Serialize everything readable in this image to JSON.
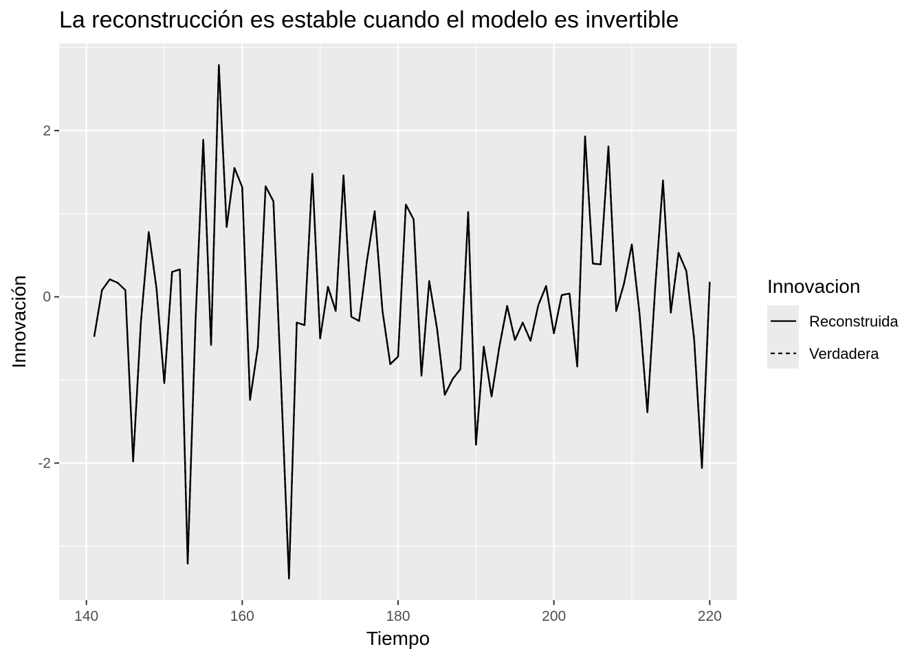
{
  "chart_data": {
    "type": "line",
    "title": "La reconstrucción es estable cuando el modelo es invertible",
    "xlabel": "Tiempo",
    "ylabel": "Innovación",
    "xlim": [
      136.5,
      223.5
    ],
    "ylim": [
      -3.65,
      3.05
    ],
    "xticks": [
      140,
      160,
      180,
      200,
      220
    ],
    "yticks": [
      -2,
      0,
      2
    ],
    "xtick_labels": [
      "140",
      "160",
      "180",
      "200",
      "220"
    ],
    "ytick_labels": [
      "-2",
      "0",
      "2"
    ],
    "grid": true,
    "legend": {
      "title": "Innovacion",
      "position": "right",
      "entries": [
        {
          "label": "Reconstruida",
          "linetype": "solid"
        },
        {
          "label": "Verdadera",
          "linetype": "dashed"
        }
      ]
    },
    "x": [
      141,
      142,
      143,
      144,
      145,
      146,
      147,
      148,
      149,
      150,
      151,
      152,
      153,
      154,
      155,
      156,
      157,
      158,
      159,
      160,
      161,
      162,
      163,
      164,
      165,
      166,
      167,
      168,
      169,
      170,
      171,
      172,
      173,
      174,
      175,
      176,
      177,
      178,
      179,
      180,
      181,
      182,
      183,
      184,
      185,
      186,
      187,
      188,
      189,
      190,
      191,
      192,
      193,
      194,
      195,
      196,
      197,
      198,
      199,
      200,
      201,
      202,
      203,
      204,
      205,
      206,
      207,
      208,
      209,
      210,
      211,
      212,
      213,
      214,
      215,
      216,
      217,
      218,
      219,
      220
    ],
    "series": [
      {
        "name": "Reconstruida",
        "color": "#000000",
        "linetype": "solid",
        "values": [
          -0.48,
          0.08,
          0.21,
          0.17,
          0.08,
          -1.98,
          -0.3,
          0.78,
          0.1,
          -1.04,
          0.3,
          0.33,
          -3.21,
          -0.31,
          1.89,
          -0.58,
          2.79,
          0.84,
          1.55,
          1.32,
          -1.24,
          -0.61,
          1.33,
          1.15,
          -1.07,
          -3.39,
          -0.31,
          -0.34,
          1.48,
          -0.5,
          0.12,
          -0.17,
          1.46,
          -0.24,
          -0.29,
          0.43,
          1.03,
          -0.17,
          -0.81,
          -0.72,
          1.11,
          0.93,
          -0.95,
          0.19,
          -0.38,
          -1.18,
          -0.99,
          -0.87,
          1.02,
          -1.78,
          -0.6,
          -1.2,
          -0.6,
          -0.11,
          -0.52,
          -0.31,
          -0.53,
          -0.1,
          0.13,
          -0.44,
          0.02,
          0.04,
          -0.84,
          1.93,
          0.4,
          0.39,
          1.81,
          -0.17,
          0.16,
          0.63,
          -0.21,
          -1.39,
          0.11,
          1.4,
          -0.19,
          0.53,
          0.31,
          -0.51,
          -2.06,
          0.18
        ]
      },
      {
        "name": "Verdadera",
        "color": "#000000",
        "linetype": "dashed",
        "values": [
          -0.48,
          0.08,
          0.21,
          0.17,
          0.08,
          -1.98,
          -0.3,
          0.78,
          0.1,
          -1.04,
          0.3,
          0.33,
          -3.21,
          -0.31,
          1.89,
          -0.58,
          2.79,
          0.84,
          1.55,
          1.32,
          -1.24,
          -0.61,
          1.33,
          1.15,
          -1.07,
          -3.39,
          -0.31,
          -0.34,
          1.48,
          -0.5,
          0.12,
          -0.17,
          1.46,
          -0.24,
          -0.29,
          0.43,
          1.03,
          -0.17,
          -0.81,
          -0.72,
          1.11,
          0.93,
          -0.95,
          0.19,
          -0.38,
          -1.18,
          -0.99,
          -0.87,
          1.02,
          -1.78,
          -0.6,
          -1.2,
          -0.6,
          -0.11,
          -0.52,
          -0.31,
          -0.53,
          -0.1,
          0.13,
          -0.44,
          0.02,
          0.04,
          -0.84,
          1.93,
          0.4,
          0.39,
          1.81,
          -0.17,
          0.16,
          0.63,
          -0.21,
          -1.39,
          0.11,
          1.4,
          -0.19,
          0.53,
          0.31,
          -0.51,
          -2.06,
          0.18
        ]
      }
    ],
    "colors": {
      "panel": "#ebebeb",
      "grid": "#ffffff",
      "line": "#000000",
      "tick_text": "#4d4d4d",
      "legend_key": "#ebebeb"
    }
  }
}
